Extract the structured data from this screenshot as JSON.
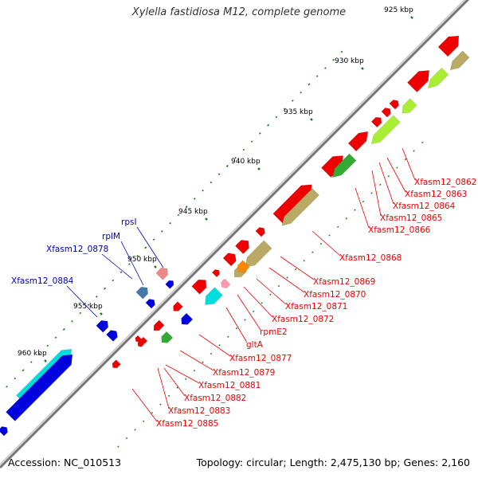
{
  "title": "Xylella fastidiosa M12, complete genome",
  "footer": {
    "accession": "Accession: NC_010513",
    "summary": "Topology: circular; Length: 2,475,130 bp; Genes: 2,160"
  },
  "scale_labels": [
    "925 kbp",
    "930 kbp",
    "935 kbp",
    "940 kbp",
    "945 kbp",
    "950 kbp",
    "955 kbp",
    "960 kbp"
  ],
  "colors": {
    "backbone": "#999999",
    "tick": "#227722",
    "gene_red": "#ee0000",
    "gene_blue": "#0000dd",
    "gene_cyan": "#00dddd",
    "gene_green": "#33aa33",
    "gene_lime": "#aaee33",
    "gene_olive": "#bbaa66",
    "label_red": "#ee0000",
    "label_blue": "#0000bb"
  },
  "labels_right": [
    "Xfasm12_0862",
    "Xfasm12_0863",
    "Xfasm12_0864",
    "Xfasm12_0865",
    "Xfasm12_0866",
    "Xfasm12_0868",
    "Xfasm12_0869",
    "Xfasm12_0870",
    "Xfasm12_0871",
    "Xfasm12_0872",
    "rpmE2",
    "gltA",
    "Xfasm12_0877",
    "Xfasm12_0879",
    "Xfasm12_0881",
    "Xfasm12_0882",
    "Xfasm12_0883",
    "Xfasm12_0885"
  ],
  "labels_left": [
    "rpsI",
    "rplM",
    "Xfasm12_0878",
    "Xfasm12_0884"
  ]
}
